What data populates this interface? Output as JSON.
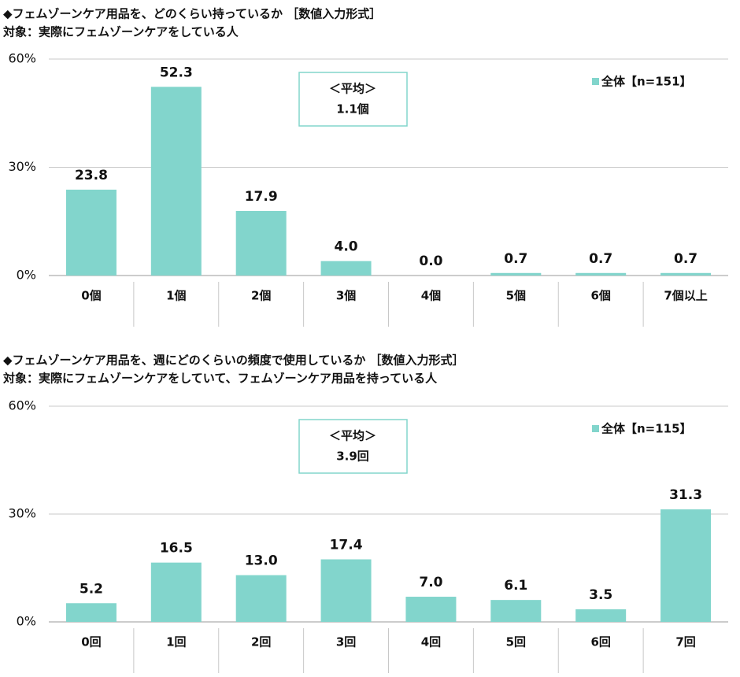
{
  "chart_data": [
    {
      "type": "bar",
      "title": "◆フェムゾーンケア用品を、どのくらい持っているか ［数値入力形式］",
      "subtitle": "対象：実際にフェムゾーンケアをしている人",
      "categories": [
        "0個",
        "1個",
        "2個",
        "3個",
        "4個",
        "5個",
        "6個",
        "7個以上"
      ],
      "series": [
        {
          "name": "全体【n=151】",
          "color": "#82d5cc",
          "values": [
            23.8,
            52.3,
            17.9,
            4.0,
            0.0,
            0.7,
            0.7,
            0.7
          ],
          "value_labels": [
            "23.8",
            "52.3",
            "17.9",
            "4.0",
            "0.0",
            "0.7",
            "0.7",
            "0.7"
          ]
        }
      ],
      "ylim": [
        0,
        60
      ],
      "yticks": [
        {
          "value": 0,
          "label": "0%"
        },
        {
          "value": 30,
          "label": "30%"
        },
        {
          "value": 60,
          "label": "60%"
        }
      ],
      "grid": true,
      "annotations": [
        "＜平均＞",
        "1.1個"
      ]
    },
    {
      "type": "bar",
      "title": "◆フェムゾーンケア用品を、週にどのくらいの頻度で使用しているか ［数値入力形式］",
      "subtitle": "対象：実際にフェムゾーンケアをしていて、フェムゾーンケア用品を持っている人",
      "categories": [
        "0回",
        "1回",
        "2回",
        "3回",
        "4回",
        "5回",
        "6回",
        "7回"
      ],
      "series": [
        {
          "name": "全体【n=115】",
          "color": "#82d5cc",
          "values": [
            5.2,
            16.5,
            13.0,
            17.4,
            7.0,
            6.1,
            3.5,
            31.3
          ],
          "value_labels": [
            "5.2",
            "16.5",
            "13.0",
            "17.4",
            "7.0",
            "6.1",
            "3.5",
            "31.3"
          ]
        }
      ],
      "ylim": [
        0,
        60
      ],
      "yticks": [
        {
          "value": 0,
          "label": "0%"
        },
        {
          "value": 30,
          "label": "30%"
        },
        {
          "value": 60,
          "label": "60%"
        }
      ],
      "grid": true,
      "annotations": [
        "＜平均＞",
        "3.9回"
      ]
    }
  ]
}
